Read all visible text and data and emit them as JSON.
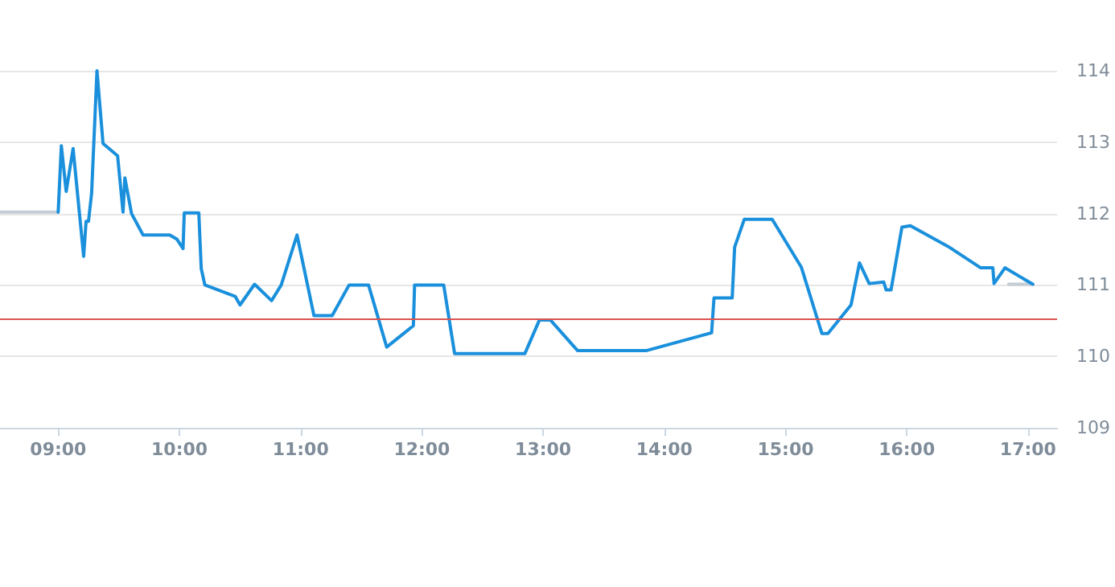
{
  "chart_data": {
    "type": "line",
    "xlim": [
      8.52,
      17.24
    ],
    "xticks": [
      {
        "value": 9,
        "label": "09:00"
      },
      {
        "value": 10,
        "label": "10:00"
      },
      {
        "value": 11,
        "label": "11:00"
      },
      {
        "value": 12,
        "label": "12:00"
      },
      {
        "value": 13,
        "label": "13:00"
      },
      {
        "value": 14,
        "label": "14:00"
      },
      {
        "value": 15,
        "label": "15:00"
      },
      {
        "value": 16,
        "label": "16:00"
      },
      {
        "value": 17,
        "label": "17:00"
      }
    ],
    "ylim": [
      109,
      114
    ],
    "yticks": [
      109,
      110,
      111,
      112,
      113,
      114
    ],
    "grid": "y",
    "marker": "none",
    "line_style": "solid",
    "ref_lines": [
      {
        "axis": "y",
        "value": 110.53,
        "color": "#d9534f"
      }
    ],
    "series": [
      {
        "color": "#c4ccd4",
        "x": [
          8.52,
          9.0
        ],
        "values": [
          112.02,
          112.02
        ]
      },
      {
        "color": "#c4ccd4",
        "x": [
          16.84,
          17.04
        ],
        "values": [
          111.01,
          111.01
        ]
      },
      {
        "color": "#1a90dc",
        "x": [
          9.0,
          9.026,
          9.066,
          9.123,
          9.21,
          9.23,
          9.25,
          9.276,
          9.32,
          9.37,
          9.49,
          9.535,
          9.55,
          9.605,
          9.7,
          9.92,
          9.98,
          10.03,
          10.04,
          10.16,
          10.18,
          10.21,
          10.46,
          10.5,
          10.62,
          10.76,
          10.84,
          10.97,
          11.11,
          11.26,
          11.4,
          11.56,
          11.71,
          11.93,
          11.94,
          12.18,
          12.27,
          12.85,
          12.97,
          13.06,
          13.285,
          13.85,
          14.39,
          14.41,
          14.56,
          14.58,
          14.66,
          14.89,
          15.13,
          15.3,
          15.35,
          15.54,
          15.61,
          15.69,
          15.81,
          15.83,
          15.87,
          15.96,
          16.03,
          16.34,
          16.61,
          16.71,
          16.72,
          16.81,
          17.04
        ],
        "values": [
          112.02,
          112.95,
          112.31,
          112.91,
          111.4,
          111.89,
          111.89,
          112.29,
          114,
          112.98,
          112.81,
          112.02,
          112.5,
          112.0,
          111.7,
          111.7,
          111.64,
          111.51,
          112.01,
          112.01,
          111.23,
          111.0,
          110.84,
          110.72,
          111.01,
          110.78,
          111.0,
          111.7,
          110.57,
          110.57,
          111.0,
          111.0,
          110.13,
          110.43,
          111.0,
          111.0,
          110.04,
          110.04,
          110.51,
          110.51,
          110.08,
          110.08,
          110.33,
          110.82,
          110.82,
          111.53,
          111.92,
          111.92,
          111.25,
          110.32,
          110.32,
          110.72,
          111.31,
          111.02,
          111.04,
          110.93,
          110.93,
          111.81,
          111.83,
          111.54,
          111.24,
          111.24,
          111.02,
          111.24,
          111.01
        ]
      }
    ]
  }
}
